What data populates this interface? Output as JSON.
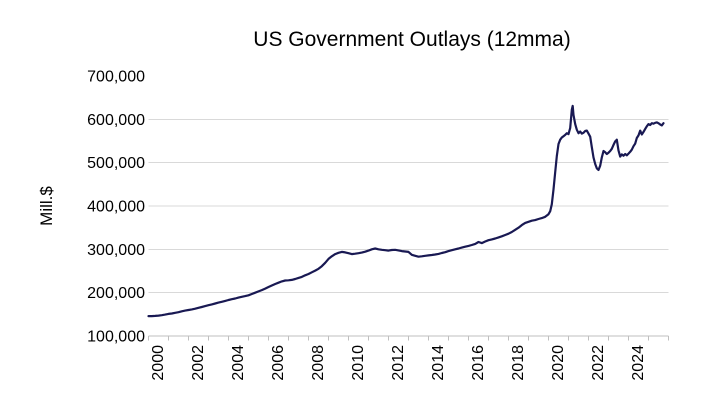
{
  "chart": {
    "title": "US Government Outlays (12mma)",
    "y_axis": {
      "title": "Mill.$",
      "tick_labels": [
        "700,000",
        "600,000",
        "500,000",
        "400,000",
        "300,000",
        "200,000",
        "100,000"
      ],
      "tick_values": [
        700000,
        600000,
        500000,
        400000,
        300000,
        200000,
        100000
      ],
      "gridline_values": [
        600000,
        500000,
        400000,
        300000,
        200000
      ]
    },
    "x_axis": {
      "tick_labels": [
        "2000",
        "2002",
        "2004",
        "2006",
        "2008",
        "2010",
        "2012",
        "2014",
        "2016",
        "2018",
        "2020",
        "2022",
        "2024"
      ],
      "label_years": [
        2000,
        2002,
        2004,
        2006,
        2008,
        2010,
        2012,
        2014,
        2016,
        2018,
        2020,
        2022,
        2024
      ],
      "minor_tick_interval_years": 1
    },
    "colors": {
      "line": "#191953",
      "gridline": "#d9d9d9",
      "axis_line": "#bfbfbf",
      "text": "#000000",
      "background": "#ffffff"
    }
  },
  "chart_data": {
    "type": "line",
    "title": "US Government Outlays (12mma)",
    "xlabel": "",
    "ylabel": "Mill.$",
    "x_range": [
      2000,
      2026
    ],
    "ylim": [
      100000,
      700000
    ],
    "grid": "horizontal",
    "legend": "none",
    "series": [
      {
        "name": "US Government Outlays (12-month moving average, Mill.$)",
        "points": [
          [
            2000.0,
            146000
          ],
          [
            2000.167,
            146000
          ],
          [
            2000.333,
            146500
          ],
          [
            2000.5,
            147000
          ],
          [
            2000.667,
            148000
          ],
          [
            2000.833,
            149500
          ],
          [
            2001.0,
            151000
          ],
          [
            2001.167,
            152000
          ],
          [
            2001.333,
            153500
          ],
          [
            2001.5,
            155000
          ],
          [
            2001.667,
            157000
          ],
          [
            2001.833,
            158500
          ],
          [
            2002.0,
            160000
          ],
          [
            2002.167,
            161500
          ],
          [
            2002.333,
            163000
          ],
          [
            2002.5,
            165000
          ],
          [
            2002.667,
            167000
          ],
          [
            2002.833,
            169000
          ],
          [
            2003.0,
            171000
          ],
          [
            2003.167,
            173000
          ],
          [
            2003.333,
            175000
          ],
          [
            2003.5,
            177000
          ],
          [
            2003.667,
            179000
          ],
          [
            2003.833,
            181000
          ],
          [
            2004.0,
            183000
          ],
          [
            2004.167,
            185000
          ],
          [
            2004.333,
            186500
          ],
          [
            2004.5,
            188500
          ],
          [
            2004.667,
            190500
          ],
          [
            2004.833,
            192000
          ],
          [
            2005.0,
            194000
          ],
          [
            2005.167,
            197000
          ],
          [
            2005.333,
            200000
          ],
          [
            2005.5,
            203000
          ],
          [
            2005.667,
            206000
          ],
          [
            2005.833,
            209500
          ],
          [
            2006.0,
            213000
          ],
          [
            2006.167,
            216500
          ],
          [
            2006.333,
            220000
          ],
          [
            2006.5,
            223000
          ],
          [
            2006.667,
            226000
          ],
          [
            2006.833,
            228000
          ],
          [
            2007.0,
            228500
          ],
          [
            2007.167,
            229500
          ],
          [
            2007.333,
            231500
          ],
          [
            2007.5,
            234000
          ],
          [
            2007.667,
            236500
          ],
          [
            2007.833,
            240000
          ],
          [
            2008.0,
            243000
          ],
          [
            2008.167,
            247000
          ],
          [
            2008.333,
            251000
          ],
          [
            2008.5,
            255000
          ],
          [
            2008.667,
            261000
          ],
          [
            2008.833,
            269000
          ],
          [
            2009.0,
            278000
          ],
          [
            2009.167,
            284000
          ],
          [
            2009.333,
            289000
          ],
          [
            2009.5,
            292000
          ],
          [
            2009.667,
            294000
          ],
          [
            2009.833,
            293000
          ],
          [
            2010.0,
            291000
          ],
          [
            2010.167,
            289000
          ],
          [
            2010.333,
            290000
          ],
          [
            2010.5,
            291000
          ],
          [
            2010.667,
            292500
          ],
          [
            2010.833,
            294500
          ],
          [
            2011.0,
            297000
          ],
          [
            2011.167,
            300000
          ],
          [
            2011.333,
            302000
          ],
          [
            2011.5,
            300000
          ],
          [
            2011.667,
            299000
          ],
          [
            2011.833,
            298000
          ],
          [
            2012.0,
            297000
          ],
          [
            2012.167,
            298500
          ],
          [
            2012.333,
            299000
          ],
          [
            2012.5,
            297500
          ],
          [
            2012.667,
            296000
          ],
          [
            2012.833,
            295000
          ],
          [
            2013.0,
            294000
          ],
          [
            2013.167,
            287500
          ],
          [
            2013.333,
            285000
          ],
          [
            2013.5,
            283000
          ],
          [
            2013.667,
            284000
          ],
          [
            2013.833,
            285000
          ],
          [
            2014.0,
            286000
          ],
          [
            2014.167,
            287000
          ],
          [
            2014.333,
            288000
          ],
          [
            2014.5,
            289500
          ],
          [
            2014.667,
            291500
          ],
          [
            2014.833,
            293500
          ],
          [
            2015.0,
            296000
          ],
          [
            2015.167,
            298000
          ],
          [
            2015.333,
            300000
          ],
          [
            2015.5,
            302000
          ],
          [
            2015.667,
            304000
          ],
          [
            2015.833,
            306000
          ],
          [
            2016.0,
            308000
          ],
          [
            2016.167,
            310000
          ],
          [
            2016.333,
            312500
          ],
          [
            2016.5,
            317000
          ],
          [
            2016.667,
            314500
          ],
          [
            2016.833,
            318000
          ],
          [
            2017.0,
            321000
          ],
          [
            2017.167,
            323000
          ],
          [
            2017.333,
            325000
          ],
          [
            2017.5,
            327500
          ],
          [
            2017.667,
            330000
          ],
          [
            2017.833,
            333000
          ],
          [
            2018.0,
            336000
          ],
          [
            2018.167,
            340000
          ],
          [
            2018.333,
            345000
          ],
          [
            2018.5,
            350000
          ],
          [
            2018.667,
            356000
          ],
          [
            2018.833,
            361000
          ],
          [
            2019.0,
            363500
          ],
          [
            2019.167,
            366000
          ],
          [
            2019.333,
            367500
          ],
          [
            2019.5,
            370000
          ],
          [
            2019.667,
            372000
          ],
          [
            2019.833,
            375000
          ],
          [
            2020.0,
            381000
          ],
          [
            2020.083,
            388000
          ],
          [
            2020.167,
            404000
          ],
          [
            2020.25,
            438000
          ],
          [
            2020.333,
            478000
          ],
          [
            2020.417,
            515000
          ],
          [
            2020.5,
            543000
          ],
          [
            2020.583,
            553000
          ],
          [
            2020.667,
            558000
          ],
          [
            2020.75,
            561000
          ],
          [
            2020.833,
            564000
          ],
          [
            2020.917,
            568000
          ],
          [
            2021.0,
            566000
          ],
          [
            2021.083,
            580000
          ],
          [
            2021.167,
            622000
          ],
          [
            2021.208,
            631000
          ],
          [
            2021.25,
            610000
          ],
          [
            2021.333,
            589000
          ],
          [
            2021.417,
            576000
          ],
          [
            2021.5,
            568000
          ],
          [
            2021.583,
            572000
          ],
          [
            2021.667,
            567000
          ],
          [
            2021.75,
            569000
          ],
          [
            2021.833,
            573000
          ],
          [
            2021.917,
            574000
          ],
          [
            2022.0,
            567000
          ],
          [
            2022.083,
            560000
          ],
          [
            2022.167,
            536000
          ],
          [
            2022.25,
            512000
          ],
          [
            2022.333,
            497000
          ],
          [
            2022.417,
            487000
          ],
          [
            2022.5,
            483000
          ],
          [
            2022.583,
            493000
          ],
          [
            2022.667,
            512000
          ],
          [
            2022.75,
            527000
          ],
          [
            2022.833,
            524000
          ],
          [
            2022.917,
            520000
          ],
          [
            2023.0,
            523000
          ],
          [
            2023.083,
            527000
          ],
          [
            2023.167,
            532000
          ],
          [
            2023.25,
            541000
          ],
          [
            2023.333,
            549000
          ],
          [
            2023.417,
            553000
          ],
          [
            2023.5,
            528000
          ],
          [
            2023.583,
            514000
          ],
          [
            2023.667,
            519000
          ],
          [
            2023.75,
            516000
          ],
          [
            2023.833,
            520000
          ],
          [
            2023.917,
            517000
          ],
          [
            2024.0,
            521000
          ],
          [
            2024.083,
            525000
          ],
          [
            2024.167,
            530000
          ],
          [
            2024.25,
            538000
          ],
          [
            2024.333,
            544000
          ],
          [
            2024.417,
            557000
          ],
          [
            2024.5,
            563000
          ],
          [
            2024.583,
            574000
          ],
          [
            2024.667,
            565000
          ],
          [
            2024.75,
            571000
          ],
          [
            2024.833,
            578000
          ],
          [
            2024.917,
            584000
          ],
          [
            2025.0,
            589000
          ],
          [
            2025.083,
            587000
          ],
          [
            2025.167,
            591000
          ],
          [
            2025.25,
            590000
          ],
          [
            2025.333,
            592000
          ],
          [
            2025.417,
            593000
          ],
          [
            2025.5,
            591000
          ],
          [
            2025.583,
            588000
          ],
          [
            2025.667,
            586000
          ],
          [
            2025.75,
            591000
          ]
        ]
      }
    ]
  }
}
